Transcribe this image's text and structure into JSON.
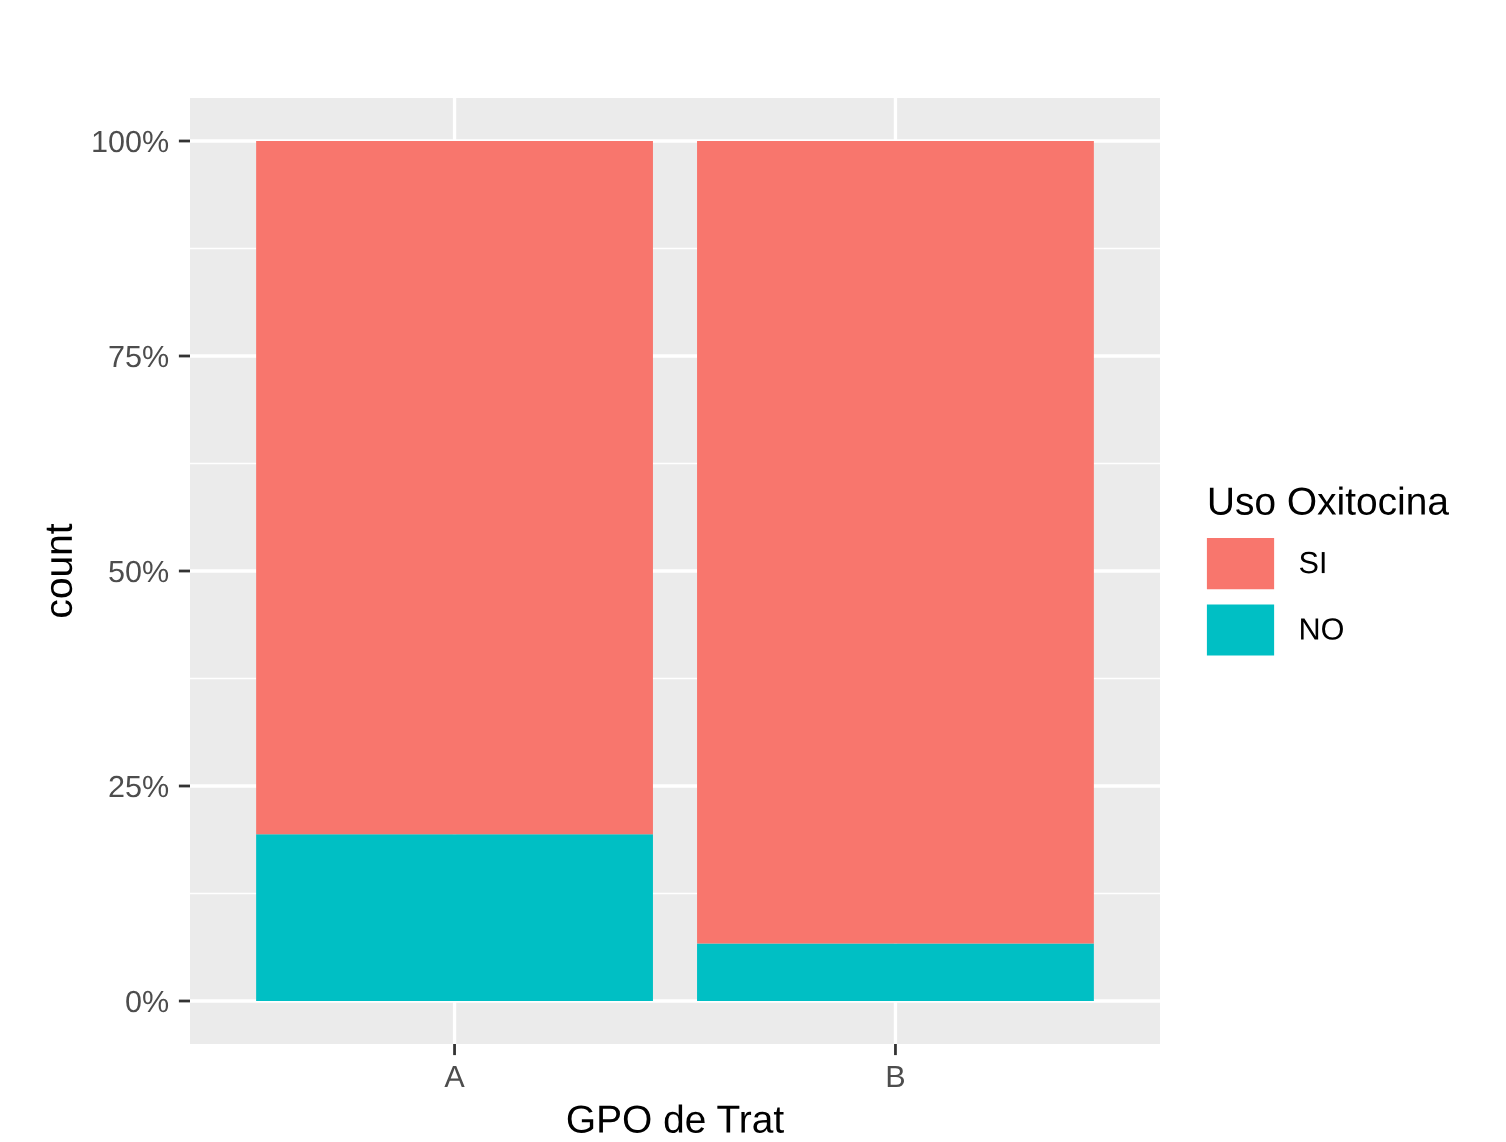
{
  "chart_data": {
    "type": "bar",
    "stacked": true,
    "xlabel": "GPO de Trat",
    "ylabel": "count",
    "legend_title": "Uso Oxitocina",
    "categories": [
      "A",
      "B"
    ],
    "series": [
      {
        "name": "NO",
        "color": "#00bfc4",
        "values": [
          19.4,
          6.7
        ]
      },
      {
        "name": "SI",
        "color": "#f8766d",
        "values": [
          80.6,
          93.3
        ]
      }
    ],
    "ylim": [
      -5,
      105
    ],
    "yticks": [
      {
        "value": 0,
        "label": "0%"
      },
      {
        "value": 25,
        "label": "25%"
      },
      {
        "value": 50,
        "label": "50%"
      },
      {
        "value": 75,
        "label": "75%"
      },
      {
        "value": 100,
        "label": "100%"
      }
    ],
    "grid": true,
    "legend": "right"
  }
}
